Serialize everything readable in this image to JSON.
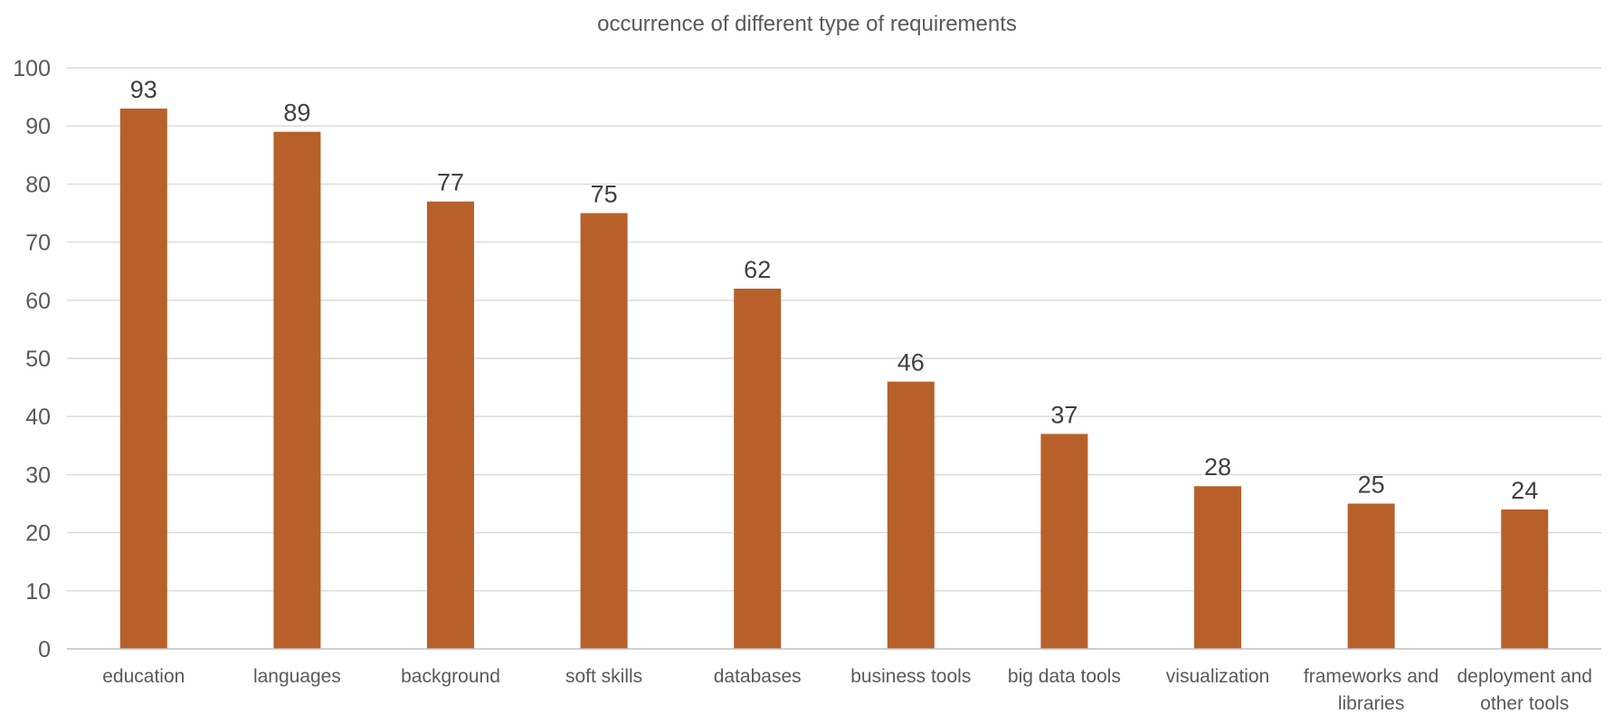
{
  "chart_data": {
    "type": "bar",
    "title": "occurrence of different type of requirements",
    "xlabel": "",
    "ylabel": "",
    "categories": [
      [
        "education"
      ],
      [
        "languages"
      ],
      [
        "background"
      ],
      [
        "soft skills"
      ],
      [
        "databases"
      ],
      [
        "business tools"
      ],
      [
        "big data tools"
      ],
      [
        "visualization"
      ],
      [
        "frameworks and",
        "libraries"
      ],
      [
        "deployment and",
        "other tools"
      ]
    ],
    "values": [
      93,
      89,
      77,
      75,
      62,
      46,
      37,
      28,
      25,
      24
    ],
    "ylim": [
      0,
      100
    ],
    "y_ticks": [
      0,
      10,
      20,
      30,
      40,
      50,
      60,
      70,
      80,
      90,
      100
    ],
    "grid": true,
    "legend": "none",
    "data_labels": true,
    "bar_color": "#b8602a"
  }
}
